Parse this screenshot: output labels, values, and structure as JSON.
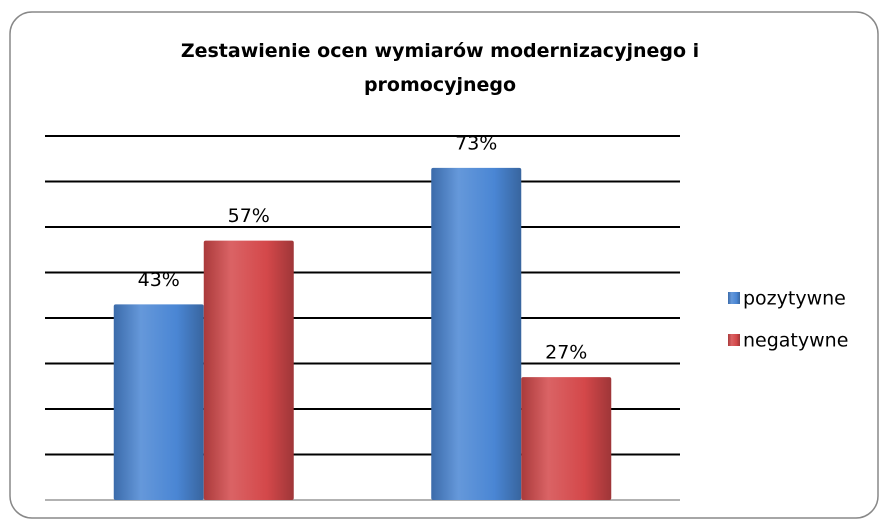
{
  "chart_data": {
    "type": "bar",
    "title": "Zestawienie ocen wymiarów modernizacyjnego i promocyjnego",
    "categories": [
      null,
      null
    ],
    "series": [
      {
        "name": "pozytywne",
        "color": "#4a86d4",
        "values": [
          43,
          73
        ],
        "value_labels": [
          "43%",
          "73%"
        ]
      },
      {
        "name": "negatywne",
        "color": "#d4484a",
        "values": [
          57,
          27
        ],
        "value_labels": [
          "57%",
          "27%"
        ]
      }
    ],
    "ylim": [
      0,
      80
    ],
    "yticks": [
      0,
      10,
      20,
      30,
      40,
      50,
      60,
      70,
      80
    ],
    "grid": true,
    "legend": "right"
  }
}
